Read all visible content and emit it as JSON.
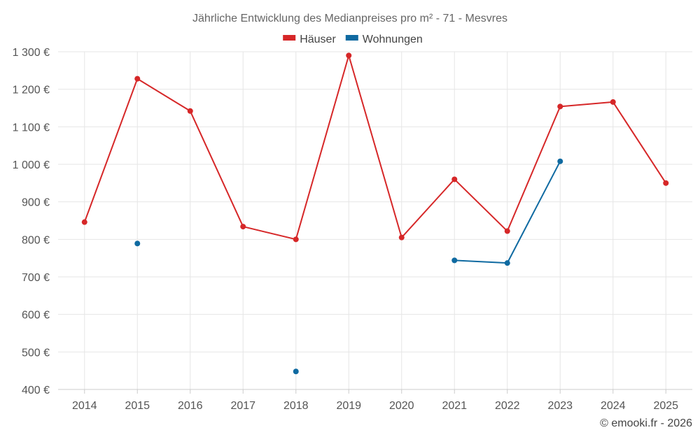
{
  "chart_data": {
    "type": "line",
    "title": "Jährliche Entwicklung des Medianpreises pro m² - 71 - Mesvres",
    "categories": [
      "2014",
      "2015",
      "2016",
      "2017",
      "2018",
      "2019",
      "2020",
      "2021",
      "2022",
      "2023",
      "2024",
      "2025"
    ],
    "y_ticks": [
      400,
      500,
      600,
      700,
      800,
      900,
      1000,
      1100,
      1200,
      1300
    ],
    "y_tick_labels": [
      "400 €",
      "500 €",
      "600 €",
      "700 €",
      "800 €",
      "900 €",
      "1 000 €",
      "1 100 €",
      "1 200 €",
      "1 300 €"
    ],
    "ylim": [
      400,
      1300
    ],
    "grid": true,
    "legend_position": "top-center",
    "series": [
      {
        "name": "Häuser",
        "color": "#d62728",
        "values": [
          846,
          1228,
          1142,
          834,
          800,
          1290,
          805,
          960,
          822,
          1154,
          1166,
          950
        ]
      },
      {
        "name": "Wohnungen",
        "color": "#0f6aa1",
        "values": [
          null,
          789,
          null,
          null,
          448,
          null,
          null,
          744,
          737,
          1008,
          null,
          null
        ]
      }
    ]
  },
  "credit": "© emooki.fr - 2026"
}
